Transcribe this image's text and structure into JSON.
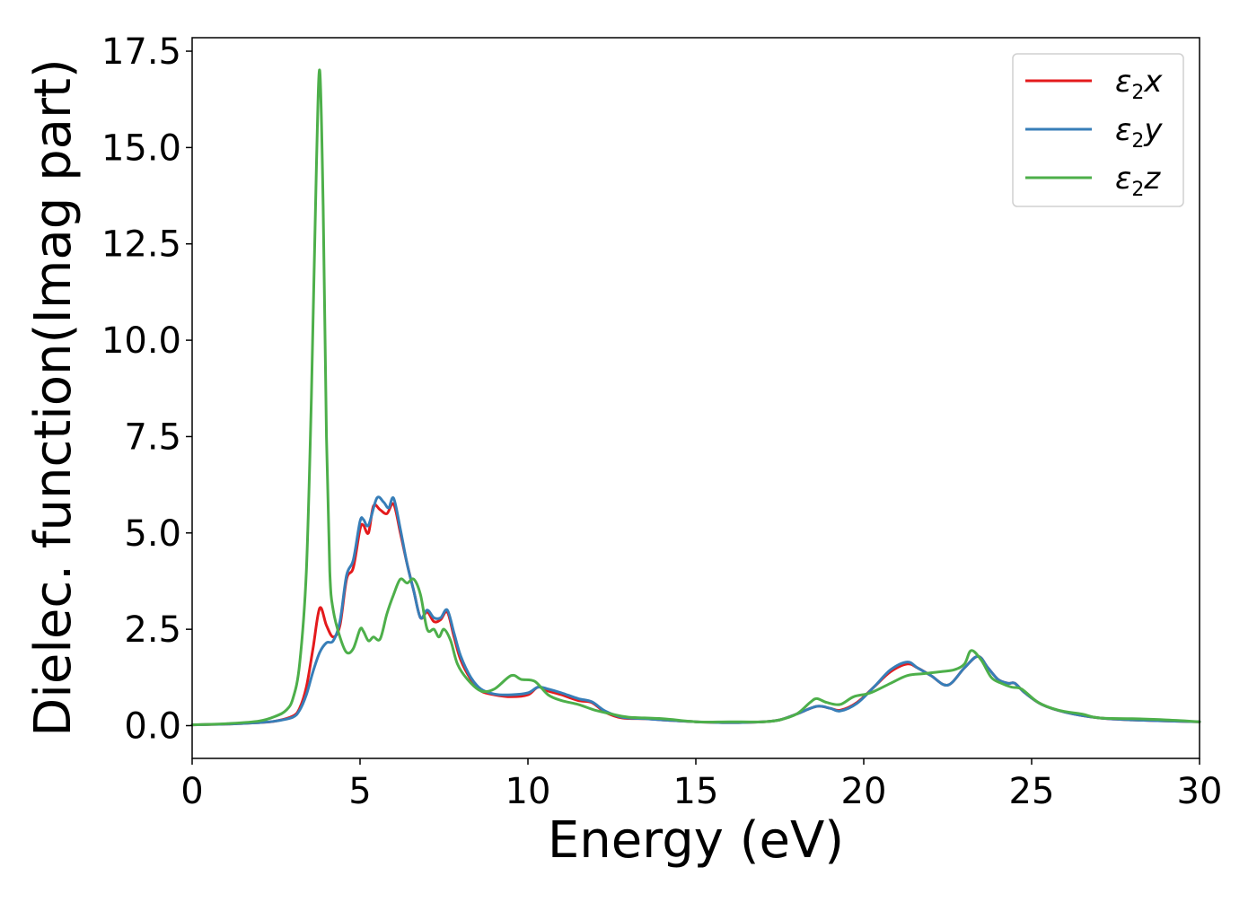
{
  "chart_data": {
    "type": "line",
    "title": "",
    "xlabel": "Energy (eV)",
    "ylabel": "Dielec. function(Imag part)",
    "xlim": [
      0,
      30
    ],
    "ylim": [
      -0.85,
      17.85
    ],
    "xticks": [
      "0",
      "5",
      "10",
      "15",
      "20",
      "25",
      "30"
    ],
    "yticks": [
      "0.0",
      "2.5",
      "5.0",
      "7.5",
      "10.0",
      "12.5",
      "15.0",
      "17.5"
    ],
    "grid": false,
    "legend_position": "top-right",
    "series": [
      {
        "name": "ε2x",
        "legend": {
          "base": "ε",
          "sub": "2",
          "suffix": "x"
        },
        "color": "#e41a1c",
        "x": [
          0,
          1,
          2,
          2.5,
          3,
          3.2,
          3.4,
          3.6,
          3.8,
          4.0,
          4.2,
          4.4,
          4.6,
          4.8,
          5.0,
          5.1,
          5.25,
          5.4,
          5.6,
          5.8,
          6.0,
          6.2,
          6.4,
          6.6,
          6.8,
          7.0,
          7.2,
          7.4,
          7.6,
          7.8,
          8.0,
          8.3,
          8.6,
          9.0,
          9.5,
          10.0,
          10.3,
          10.6,
          11.0,
          11.5,
          11.9,
          12.3,
          12.8,
          13.5,
          14.0,
          15.0,
          16.0,
          17.0,
          17.5,
          18.0,
          18.6,
          19.0,
          19.3,
          19.8,
          20.3,
          20.8,
          21.3,
          21.6,
          22.0,
          22.5,
          23.0,
          23.4,
          23.7,
          24.0,
          24.3,
          24.5,
          24.8,
          25.3,
          26.0,
          27.0,
          28.0,
          29.0,
          30.0
        ],
        "y": [
          0.02,
          0.04,
          0.08,
          0.12,
          0.25,
          0.45,
          1.0,
          2.0,
          3.05,
          2.6,
          2.3,
          2.6,
          3.8,
          4.1,
          5.1,
          5.2,
          5.0,
          5.7,
          5.6,
          5.5,
          5.75,
          5.0,
          4.2,
          3.5,
          2.8,
          2.95,
          2.7,
          2.75,
          2.95,
          2.3,
          1.7,
          1.2,
          0.9,
          0.8,
          0.75,
          0.8,
          1.0,
          0.9,
          0.8,
          0.65,
          0.6,
          0.35,
          0.2,
          0.18,
          0.15,
          0.1,
          0.08,
          0.1,
          0.15,
          0.3,
          0.5,
          0.45,
          0.4,
          0.6,
          1.0,
          1.4,
          1.6,
          1.5,
          1.3,
          1.05,
          1.5,
          1.8,
          1.5,
          1.2,
          1.1,
          1.1,
          0.85,
          0.55,
          0.35,
          0.2,
          0.15,
          0.12,
          0.1
        ]
      },
      {
        "name": "ε2y",
        "legend": {
          "base": "ε",
          "sub": "2",
          "suffix": "y"
        },
        "color": "#377eb8",
        "x": [
          0,
          1,
          2,
          2.5,
          3,
          3.2,
          3.4,
          3.6,
          3.8,
          4.0,
          4.2,
          4.4,
          4.6,
          4.8,
          5.0,
          5.1,
          5.25,
          5.5,
          5.7,
          5.85,
          6.0,
          6.2,
          6.4,
          6.6,
          6.8,
          7.0,
          7.2,
          7.4,
          7.6,
          7.8,
          8.0,
          8.3,
          8.6,
          9.0,
          9.5,
          10.0,
          10.3,
          10.6,
          11.0,
          11.5,
          11.9,
          12.3,
          12.8,
          13.5,
          14.0,
          15.0,
          16.0,
          17.0,
          17.5,
          18.0,
          18.6,
          19.0,
          19.3,
          19.8,
          20.3,
          20.8,
          21.3,
          21.6,
          22.0,
          22.5,
          23.0,
          23.4,
          23.7,
          24.0,
          24.3,
          24.5,
          24.8,
          25.3,
          26.0,
          27.0,
          28.0,
          29.0,
          30.0
        ],
        "y": [
          0.02,
          0.04,
          0.08,
          0.12,
          0.22,
          0.4,
          0.8,
          1.4,
          1.9,
          2.15,
          2.2,
          2.7,
          3.9,
          4.3,
          5.3,
          5.35,
          5.2,
          5.9,
          5.8,
          5.65,
          5.9,
          5.1,
          4.2,
          3.5,
          2.8,
          3.0,
          2.8,
          2.8,
          3.0,
          2.4,
          1.8,
          1.25,
          0.95,
          0.82,
          0.8,
          0.85,
          1.0,
          0.95,
          0.85,
          0.7,
          0.62,
          0.38,
          0.22,
          0.18,
          0.15,
          0.1,
          0.08,
          0.1,
          0.15,
          0.3,
          0.5,
          0.45,
          0.38,
          0.58,
          1.0,
          1.45,
          1.65,
          1.5,
          1.3,
          1.05,
          1.5,
          1.8,
          1.5,
          1.2,
          1.1,
          1.1,
          0.85,
          0.55,
          0.35,
          0.2,
          0.15,
          0.12,
          0.1
        ]
      },
      {
        "name": "ε2z",
        "legend": {
          "base": "ε",
          "sub": "2",
          "suffix": "z"
        },
        "color": "#4daf4a",
        "x": [
          0,
          1,
          2,
          2.5,
          2.8,
          3.0,
          3.2,
          3.4,
          3.55,
          3.7,
          3.8,
          3.9,
          4.0,
          4.1,
          4.2,
          4.4,
          4.6,
          4.8,
          5.0,
          5.1,
          5.25,
          5.4,
          5.6,
          5.8,
          6.0,
          6.2,
          6.4,
          6.6,
          6.8,
          7.0,
          7.2,
          7.35,
          7.5,
          7.7,
          7.9,
          8.2,
          8.6,
          9.0,
          9.5,
          9.8,
          10.2,
          10.6,
          11.0,
          11.5,
          12.0,
          12.5,
          13.0,
          14.0,
          15.0,
          16.0,
          17.0,
          17.5,
          18.0,
          18.4,
          18.6,
          18.9,
          19.3,
          19.7,
          20.2,
          20.8,
          21.3,
          21.8,
          22.3,
          22.7,
          23.0,
          23.2,
          23.5,
          23.8,
          24.1,
          24.4,
          24.7,
          25.2,
          25.8,
          26.5,
          27.0,
          28.0,
          29.0,
          30.0
        ],
        "y": [
          0.02,
          0.05,
          0.12,
          0.25,
          0.4,
          0.7,
          1.6,
          4.0,
          8.5,
          14.5,
          17.0,
          13.5,
          7.5,
          4.0,
          3.0,
          2.3,
          1.9,
          2.0,
          2.5,
          2.45,
          2.2,
          2.3,
          2.25,
          2.9,
          3.4,
          3.8,
          3.7,
          3.8,
          3.4,
          2.5,
          2.5,
          2.3,
          2.5,
          2.2,
          1.6,
          1.2,
          0.9,
          0.95,
          1.3,
          1.2,
          1.15,
          0.8,
          0.65,
          0.55,
          0.4,
          0.3,
          0.22,
          0.18,
          0.1,
          0.1,
          0.1,
          0.15,
          0.3,
          0.6,
          0.7,
          0.6,
          0.55,
          0.75,
          0.85,
          1.1,
          1.3,
          1.35,
          1.4,
          1.45,
          1.6,
          1.95,
          1.7,
          1.25,
          1.1,
          1.0,
          0.95,
          0.6,
          0.4,
          0.3,
          0.2,
          0.18,
          0.15,
          0.1
        ]
      }
    ]
  }
}
